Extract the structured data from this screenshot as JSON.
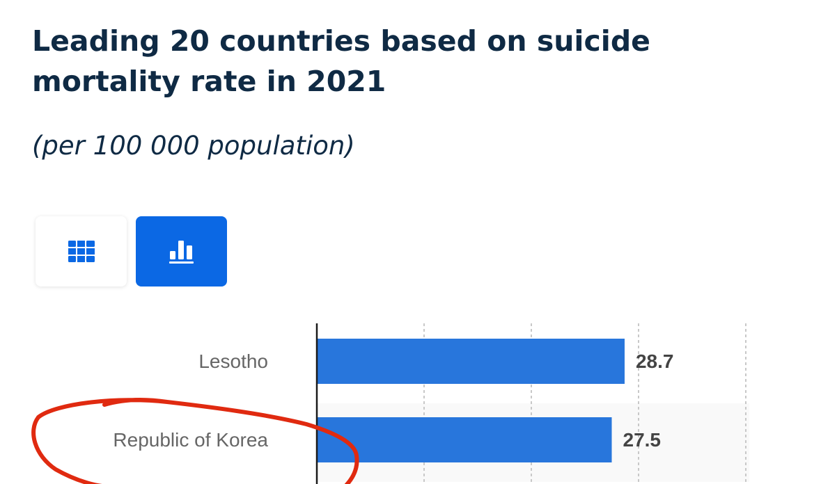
{
  "title": "Leading 20 countries based on suicide mortality rate in 2021",
  "subtitle": "(per 100 000 population)",
  "view_toggle": {
    "table_icon": "grid-table-icon",
    "chart_icon": "bar-chart-icon",
    "active": "chart",
    "accent": "#0b68e4"
  },
  "chart_data": {
    "type": "bar",
    "orientation": "horizontal",
    "categories": [
      "Lesotho",
      "Republic of Korea"
    ],
    "values": [
      28.7,
      27.5
    ],
    "data_labels": [
      "28.7",
      "27.5"
    ],
    "xlim": [
      0,
      40
    ],
    "grid": true,
    "bar_color": "#2876dc",
    "annotation": {
      "type": "hand-drawn circle",
      "target": "Republic of Korea",
      "color": "#e02a10"
    }
  }
}
